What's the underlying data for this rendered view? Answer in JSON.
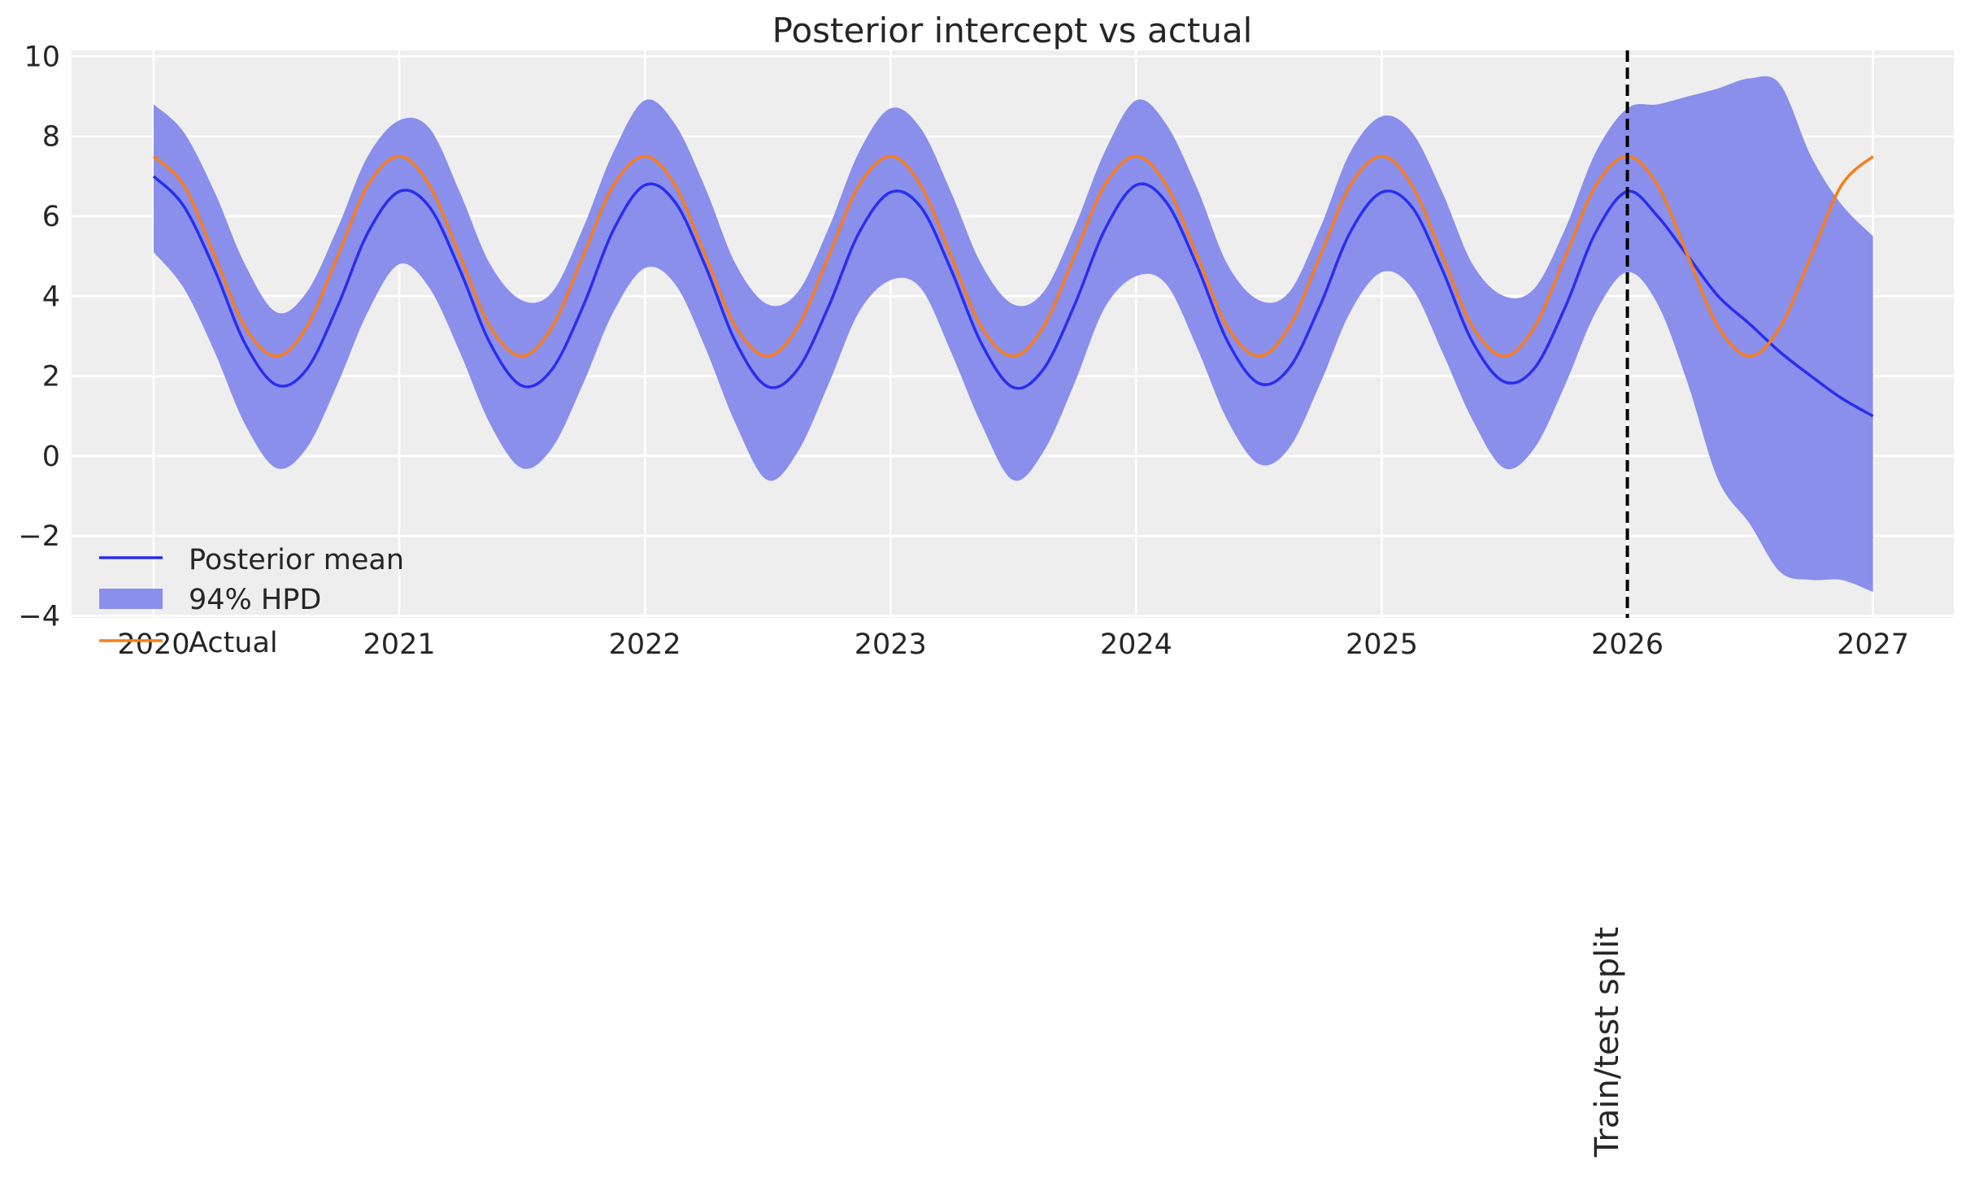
{
  "chart_data": {
    "type": "line",
    "title": "Posterior intercept vs actual",
    "xlabel": "",
    "ylabel": "",
    "xlim": [
      "2019-09-01",
      "2027-05-01"
    ],
    "ylim": [
      -4.05,
      10.15
    ],
    "grid": true,
    "legend_position": "lower-left",
    "x_ticks": [
      "2020",
      "2021",
      "2022",
      "2023",
      "2024",
      "2025",
      "2026",
      "2027"
    ],
    "y_ticks": [
      10,
      8,
      6,
      4,
      2,
      0,
      -2,
      -4
    ],
    "y_tick_labels": [
      "10",
      "8",
      "6",
      "4",
      "2",
      "0",
      "−2",
      "−4"
    ],
    "x": [
      "2020-01-01",
      "2020-02-15",
      "2020-04-01",
      "2020-05-16",
      "2020-07-02",
      "2020-08-16",
      "2020-10-01",
      "2020-11-15",
      "2021-01-01",
      "2021-02-15",
      "2021-04-01",
      "2021-05-16",
      "2021-07-02",
      "2021-08-16",
      "2021-10-01",
      "2021-11-15",
      "2022-01-01",
      "2022-02-15",
      "2022-04-01",
      "2022-05-16",
      "2022-07-02",
      "2022-08-16",
      "2022-10-01",
      "2022-11-15",
      "2023-01-01",
      "2023-02-15",
      "2023-04-01",
      "2023-05-16",
      "2023-07-02",
      "2023-08-16",
      "2023-10-01",
      "2023-11-15",
      "2024-01-01",
      "2024-02-15",
      "2024-04-01",
      "2024-05-16",
      "2024-07-02",
      "2024-08-16",
      "2024-10-01",
      "2024-11-15",
      "2025-01-01",
      "2025-02-15",
      "2025-04-01",
      "2025-05-16",
      "2025-07-02",
      "2025-08-16",
      "2025-10-01",
      "2025-11-15",
      "2026-01-01",
      "2026-02-15",
      "2026-04-01",
      "2026-05-16",
      "2026-07-02",
      "2026-08-16",
      "2026-10-01",
      "2026-11-15",
      "2027-01-01"
    ],
    "series": [
      {
        "name": "Posterior mean",
        "kind": "line",
        "color": "#2a2eec",
        "values": [
          7.0,
          6.25,
          4.66,
          2.82,
          1.78,
          2.17,
          3.74,
          5.58,
          6.62,
          6.23,
          4.66,
          2.82,
          1.76,
          2.17,
          3.74,
          5.65,
          6.78,
          6.35,
          4.75,
          2.85,
          1.74,
          2.17,
          3.74,
          5.58,
          6.6,
          6.23,
          4.66,
          2.82,
          1.72,
          2.17,
          3.76,
          5.65,
          6.78,
          6.35,
          4.75,
          2.88,
          1.82,
          2.2,
          3.76,
          5.6,
          6.6,
          6.23,
          4.66,
          2.85,
          1.86,
          2.2,
          3.74,
          5.6,
          6.62,
          6.0,
          5.0,
          4.0,
          3.3,
          2.6,
          2.0,
          1.45,
          1.0
        ]
      },
      {
        "name": "94% HPD",
        "kind": "band",
        "color": "#8a8fec",
        "upper": [
          8.8,
          8.1,
          6.6,
          4.8,
          3.6,
          4.1,
          5.7,
          7.5,
          8.4,
          8.2,
          6.6,
          4.8,
          3.9,
          4.1,
          5.7,
          7.6,
          8.9,
          8.3,
          6.7,
          4.8,
          3.8,
          4.1,
          5.7,
          7.6,
          8.7,
          8.2,
          6.6,
          4.8,
          3.8,
          4.1,
          5.7,
          7.6,
          8.9,
          8.3,
          6.7,
          4.8,
          3.9,
          4.1,
          5.7,
          7.6,
          8.5,
          8.1,
          6.6,
          4.8,
          4.0,
          4.2,
          5.7,
          7.6,
          8.7,
          8.8,
          9.0,
          9.2,
          9.45,
          9.3,
          7.5,
          6.3,
          5.5
        ],
        "lower": [
          5.1,
          4.2,
          2.6,
          0.8,
          -0.3,
          0.2,
          1.8,
          3.6,
          4.8,
          4.2,
          2.6,
          0.8,
          -0.3,
          0.2,
          1.8,
          3.6,
          4.7,
          4.3,
          2.7,
          0.8,
          -0.6,
          0.1,
          1.8,
          3.6,
          4.4,
          4.2,
          2.6,
          0.8,
          -0.6,
          0.1,
          1.8,
          3.7,
          4.5,
          4.3,
          2.7,
          0.9,
          -0.2,
          0.2,
          1.8,
          3.6,
          4.6,
          4.2,
          2.6,
          0.9,
          -0.3,
          0.2,
          1.8,
          3.6,
          4.6,
          3.8,
          1.8,
          -0.6,
          -1.7,
          -2.9,
          -3.1,
          -3.1,
          -3.4
        ]
      },
      {
        "name": "Actual",
        "kind": "line",
        "color": "#fa7c17",
        "values": [
          7.5,
          6.77,
          5.0,
          3.23,
          2.5,
          3.23,
          5.0,
          6.77,
          7.5,
          6.77,
          5.0,
          3.23,
          2.5,
          3.23,
          5.0,
          6.77,
          7.5,
          6.77,
          5.0,
          3.23,
          2.5,
          3.23,
          5.0,
          6.77,
          7.5,
          6.77,
          5.0,
          3.23,
          2.5,
          3.23,
          5.0,
          6.77,
          7.5,
          6.77,
          5.0,
          3.23,
          2.5,
          3.23,
          5.0,
          6.77,
          7.5,
          6.77,
          5.0,
          3.23,
          2.5,
          3.23,
          5.0,
          6.77,
          7.5,
          6.77,
          5.0,
          3.23,
          2.5,
          3.23,
          5.0,
          6.77,
          7.5
        ]
      }
    ],
    "annotations": [
      {
        "type": "vline",
        "x": "2026-01-01",
        "style": "dashed",
        "color": "#000000",
        "label": "Train/test split"
      }
    ],
    "legend": [
      "Posterior mean",
      "94% HPD",
      "Actual"
    ]
  }
}
